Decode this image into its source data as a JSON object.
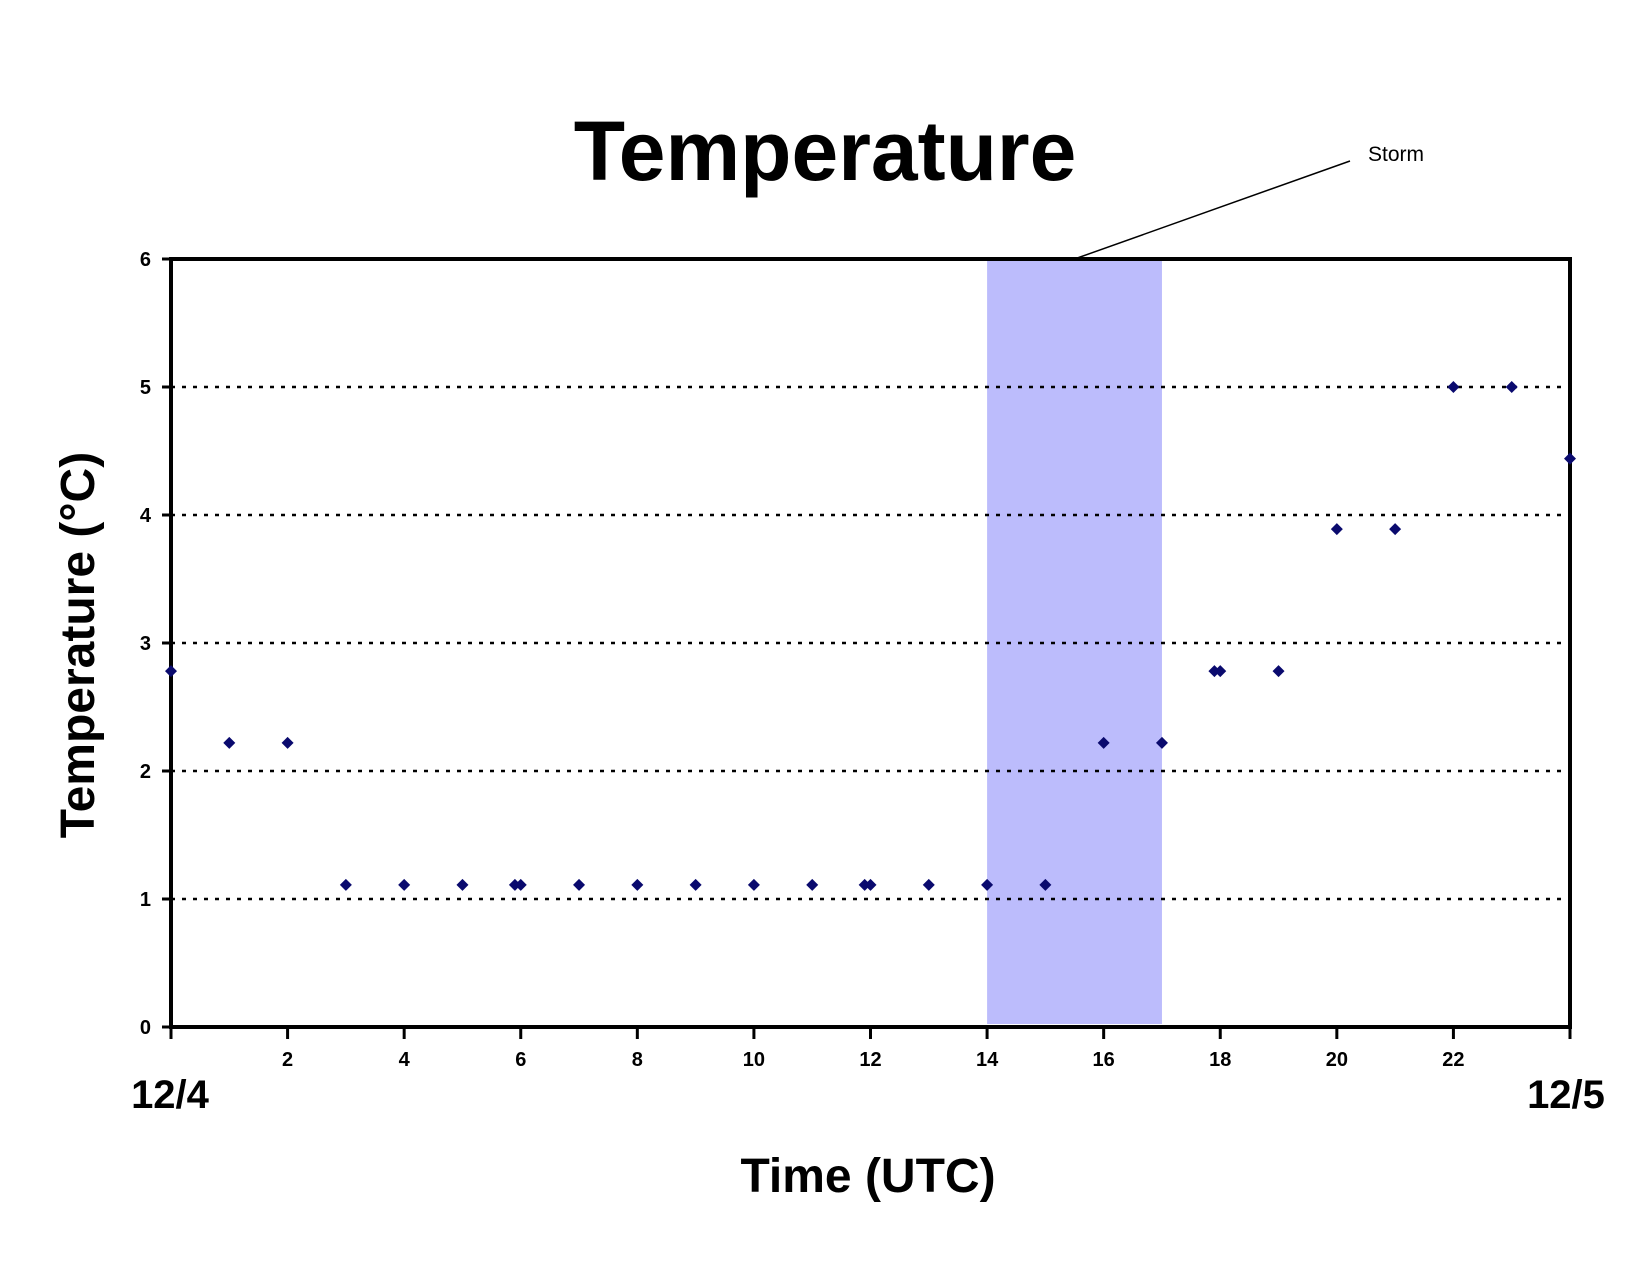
{
  "chart_data": {
    "type": "scatter",
    "title": "Temperature",
    "xlabel": "Time (UTC)",
    "ylabel": "Temperature (°C)",
    "xlim": [
      0,
      24
    ],
    "ylim": [
      0,
      6
    ],
    "x_ticks": [
      2,
      4,
      6,
      8,
      10,
      12,
      14,
      16,
      18,
      20,
      22
    ],
    "y_ticks": [
      0,
      1,
      2,
      3,
      4,
      5,
      6
    ],
    "x_start_label": "12/4",
    "x_end_label": "12/5",
    "grid": "horizontal dotted",
    "marker_color": "#0a0a6e",
    "series": [
      {
        "x": [
          0,
          1,
          2,
          3,
          4,
          5,
          5.9,
          6,
          7,
          8,
          9,
          10,
          11,
          11.9,
          12,
          13,
          14,
          15,
          16,
          17,
          17.9,
          18,
          19,
          20,
          21,
          22,
          23,
          24
        ],
        "y": [
          2.78,
          2.22,
          2.22,
          1.11,
          1.11,
          1.11,
          1.11,
          1.11,
          1.11,
          1.11,
          1.11,
          1.11,
          1.11,
          1.11,
          1.11,
          1.11,
          1.11,
          1.11,
          2.22,
          2.22,
          2.78,
          2.78,
          2.78,
          3.89,
          3.89,
          5.0,
          5.0,
          4.44
        ]
      }
    ],
    "shaded_region": {
      "x_start": 14,
      "x_end": 17,
      "label": "Storm",
      "color": "#bcbcfc"
    }
  }
}
